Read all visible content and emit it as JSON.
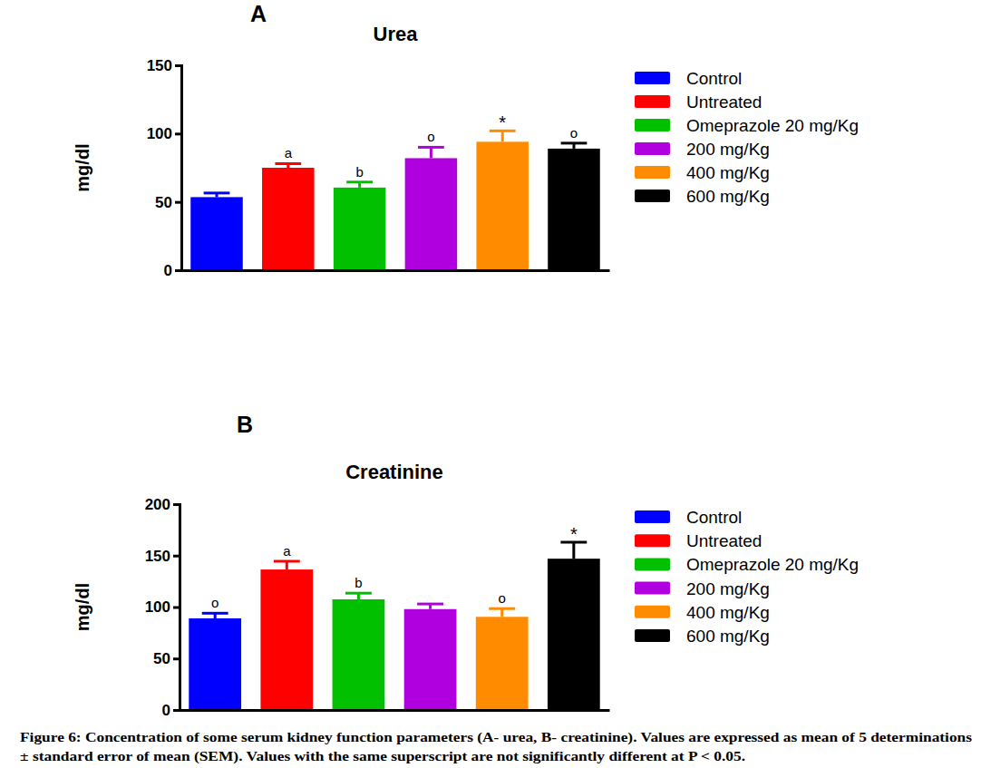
{
  "chart_data": [
    {
      "type": "bar",
      "panel": "A",
      "title": "Urea",
      "y_label": "mg/dl",
      "categories": [
        "Control",
        "Untreated",
        "Omeprazole 20 mg/Kg",
        "200 mg/Kg",
        "400 mg/Kg",
        "600 mg/Kg"
      ],
      "values": [
        53.5,
        75,
        60.5,
        82,
        94,
        89
      ],
      "errors": [
        3,
        3,
        4,
        8,
        8,
        4
      ],
      "annotations": [
        null,
        "a",
        "b",
        "o",
        "*",
        "o"
      ],
      "colors": [
        "#0000ff",
        "#ff0000",
        "#00c000",
        "#b000e0",
        "#ff8c00",
        "#000000"
      ],
      "ylim": [
        0,
        150
      ],
      "yticks": [
        0,
        50,
        100,
        150
      ],
      "grid": false,
      "legend": "right",
      "tick_labels": "y"
    },
    {
      "type": "bar",
      "panel": "B",
      "title": "Creatinine",
      "y_label": "mg/dl",
      "categories": [
        "Control",
        "Untreated",
        "Omeprazole 20 mg/Kg",
        "200 mg/Kg",
        "400 mg/Kg",
        "600 mg/Kg"
      ],
      "values": [
        89,
        136.5,
        107.5,
        98,
        90.5,
        147
      ],
      "errors": [
        5,
        8,
        6,
        5,
        8,
        16
      ],
      "annotations": [
        "o",
        "a",
        "b",
        null,
        "o",
        "*"
      ],
      "colors": [
        "#0000ff",
        "#ff0000",
        "#00c000",
        "#b000e0",
        "#ff8c00",
        "#000000"
      ],
      "ylim": [
        0,
        200
      ],
      "yticks": [
        0,
        50,
        100,
        150,
        200
      ],
      "grid": false,
      "legend": "right",
      "tick_labels": "y"
    }
  ],
  "caption": [
    "Figure 6: Concentration of some serum kidney function parameters (A- urea, B- creatinine). Values are expressed as mean of 5 determinations",
    "± standard error of mean (SEM). Values with the same superscript are not significantly different at P < 0.05."
  ]
}
